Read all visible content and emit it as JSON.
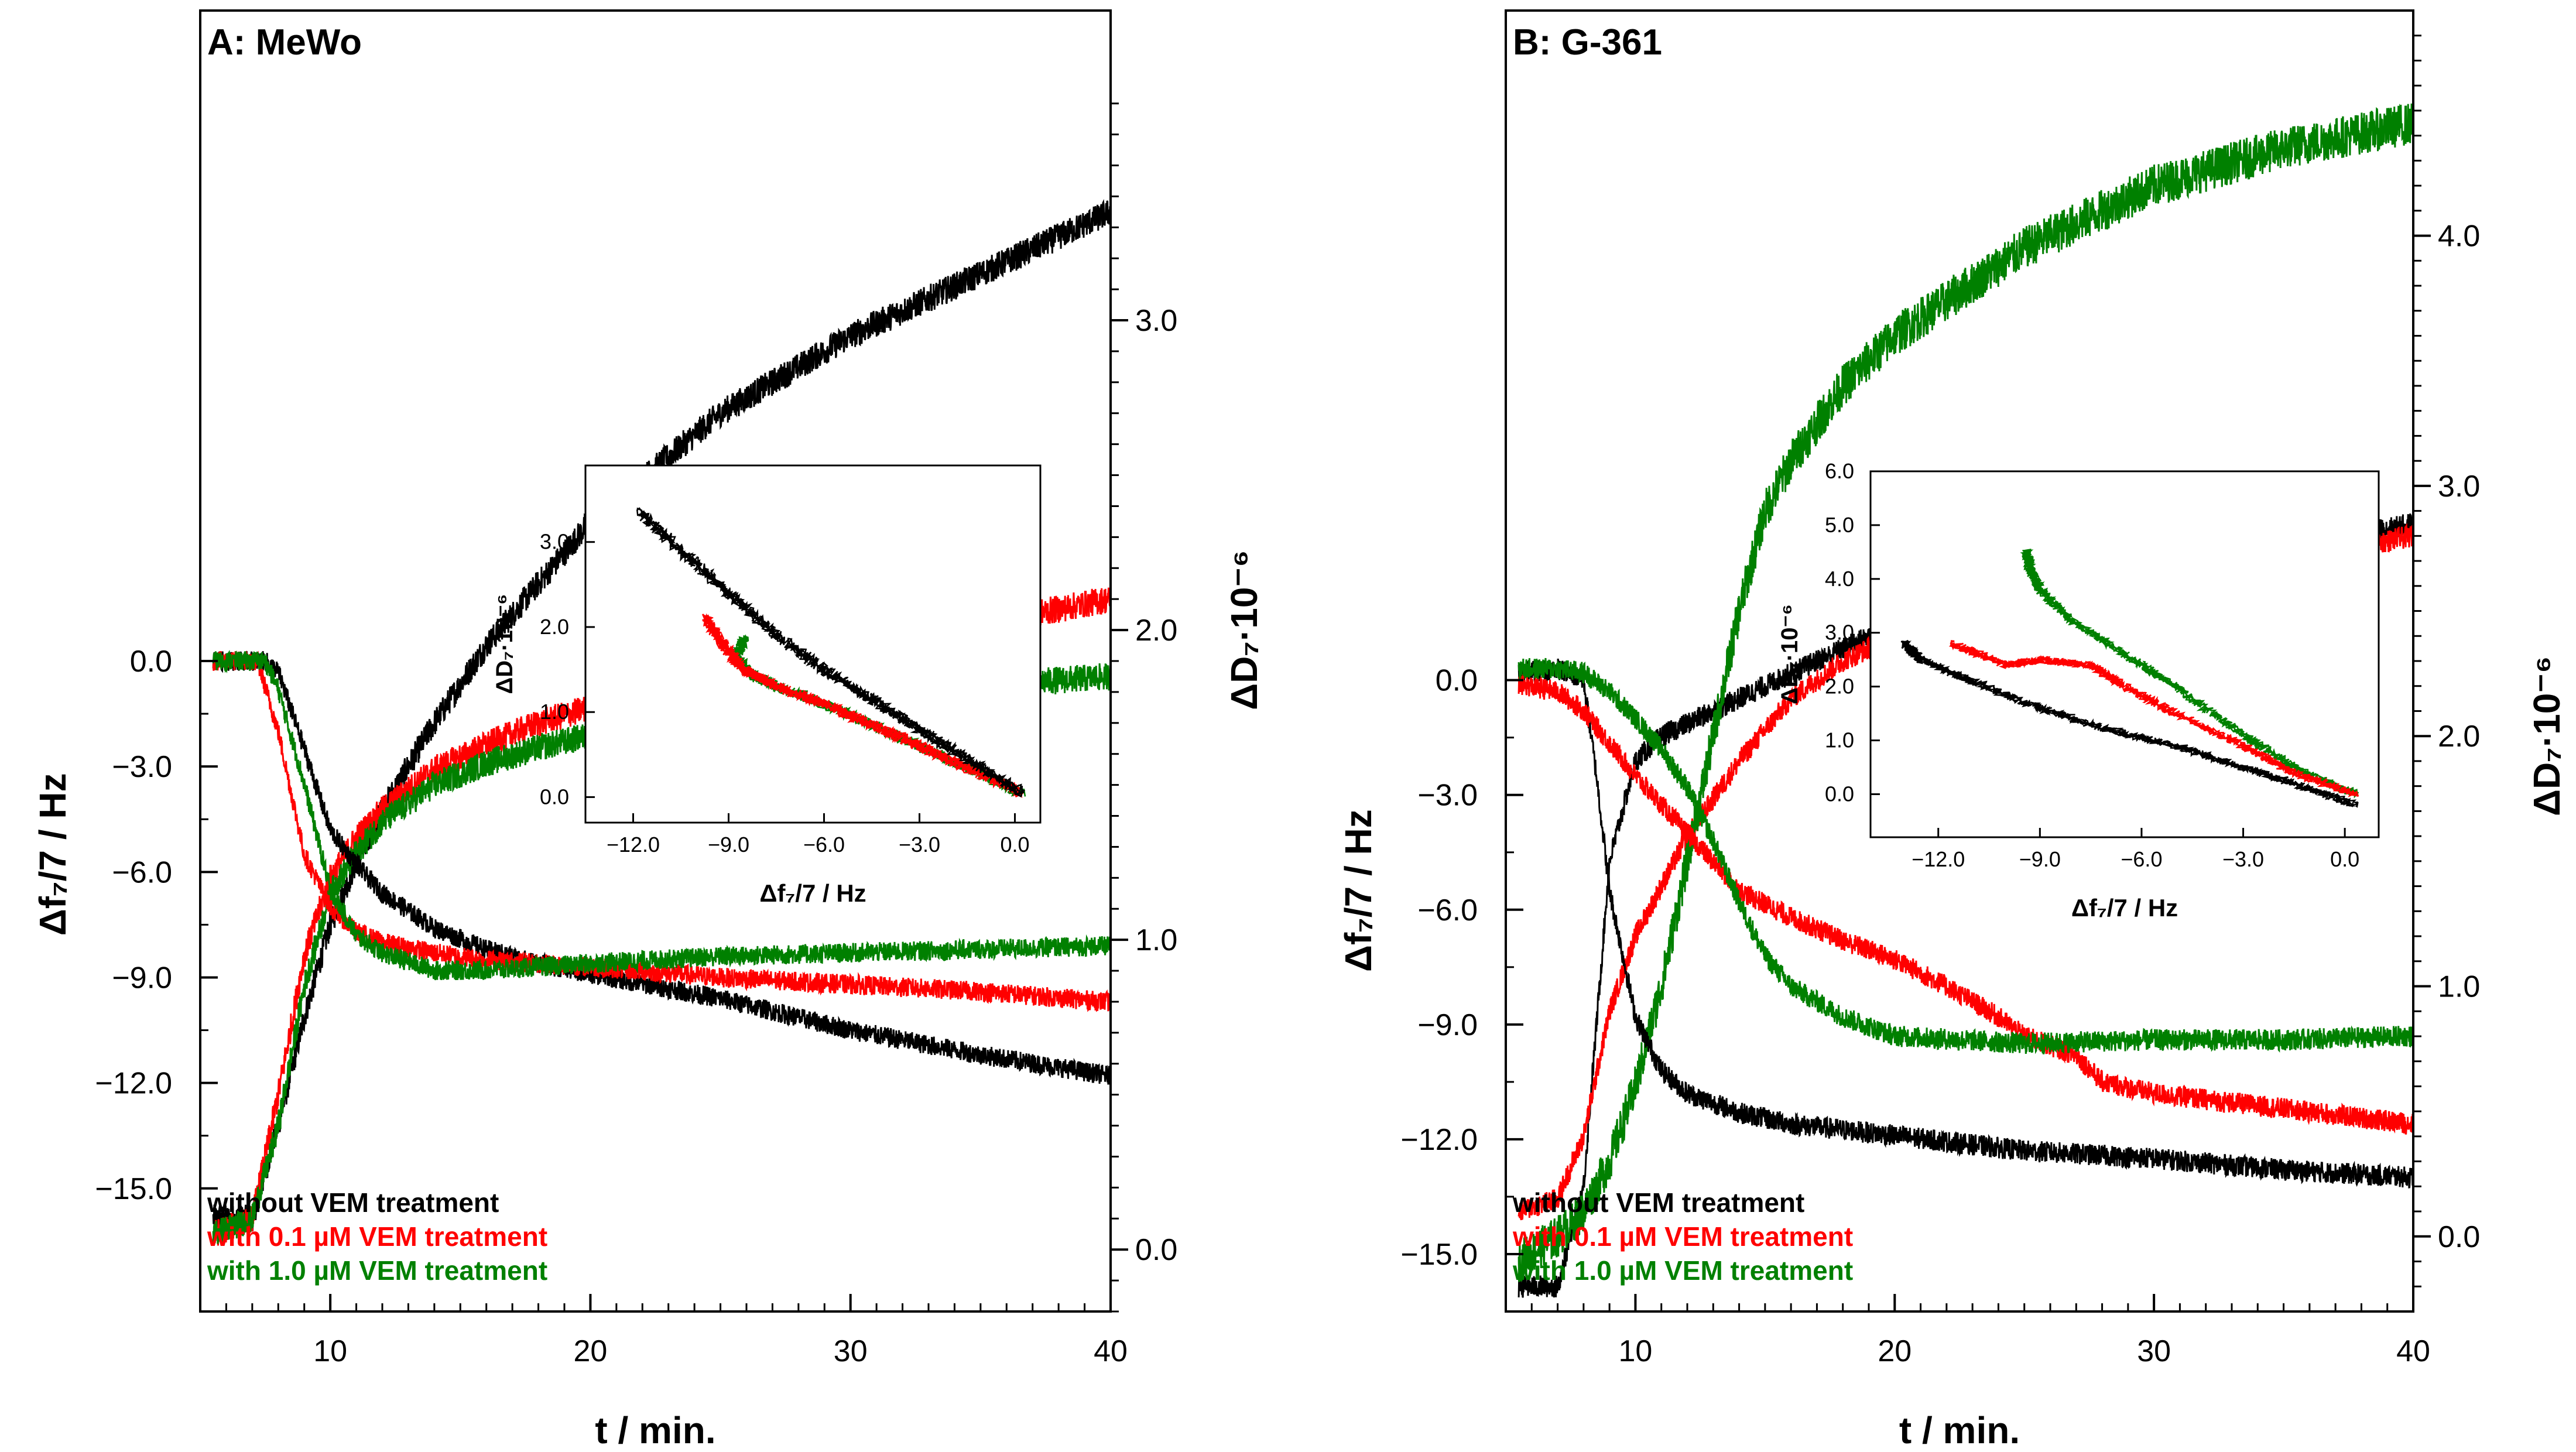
{
  "figure": {
    "legend_position": "bottom-left"
  },
  "legend": [
    {
      "label": "without VEM treatment",
      "color": "#000000"
    },
    {
      "label": "with 0.1 µM VEM treatment",
      "color": "#ff0000"
    },
    {
      "label": "with 1.0 µM VEM treatment",
      "color": "#008000"
    }
  ],
  "chart_data": [
    {
      "type": "line",
      "panel": "A",
      "title": "A: MeWo",
      "xlabel": "t / min.",
      "ylabel_left": "Δf₇/7 / Hz",
      "ylabel_right": "ΔD₇·10⁻⁶",
      "xlim": [
        5,
        40
      ],
      "xticks": [
        "10",
        "20",
        "30",
        "40"
      ],
      "ylim_left": [
        -18.5,
        18.5
      ],
      "yticks_left": [
        "0.0",
        "−3.0",
        "−6.0",
        "−9.0",
        "−12.0",
        "−15.0"
      ],
      "ylim_right": [
        -0.2,
        4.0
      ],
      "yticks_right": [
        "0.0",
        "1.0",
        "2.0",
        "3.0"
      ],
      "series_freq": [
        {
          "name": "without VEM treatment",
          "color": "#000000",
          "x": [
            5.5,
            7.5,
            8,
            9,
            10,
            11,
            12,
            14,
            16,
            18,
            20,
            25,
            30,
            35,
            40
          ],
          "y": [
            0.0,
            0.0,
            -0.3,
            -2.5,
            -4.8,
            -5.8,
            -6.6,
            -7.6,
            -8.2,
            -8.6,
            -8.9,
            -9.6,
            -10.5,
            -11.2,
            -11.8
          ]
        },
        {
          "name": "with 0.1 µM VEM treatment",
          "color": "#ff0000",
          "x": [
            5.5,
            7.2,
            8,
            9,
            10,
            11,
            12,
            14,
            16,
            18,
            20,
            25,
            30,
            35,
            40
          ],
          "y": [
            0.0,
            0.0,
            -2.0,
            -5.5,
            -7.0,
            -7.7,
            -8.0,
            -8.3,
            -8.5,
            -8.6,
            -8.7,
            -9.0,
            -9.2,
            -9.4,
            -9.7
          ]
        },
        {
          "name": "with 1.0 µM VEM treatment",
          "color": "#008000",
          "x": [
            5.5,
            7.5,
            8,
            9,
            10,
            11,
            12,
            14,
            16,
            18,
            20,
            25,
            30,
            35,
            40
          ],
          "y": [
            0.0,
            0.0,
            -0.8,
            -3.5,
            -6.5,
            -7.8,
            -8.3,
            -8.8,
            -8.8,
            -8.7,
            -8.6,
            -8.4,
            -8.3,
            -8.2,
            -8.1
          ]
        }
      ],
      "series_diss": [
        {
          "name": "without VEM treatment",
          "color": "#000000",
          "x": [
            5.5,
            7,
            8,
            9,
            10,
            11,
            12,
            14,
            16,
            18,
            20,
            25,
            30,
            35,
            40
          ],
          "y": [
            0.1,
            0.1,
            0.4,
            0.75,
            1.05,
            1.25,
            1.42,
            1.7,
            1.95,
            2.15,
            2.35,
            2.7,
            2.95,
            3.15,
            3.35
          ]
        },
        {
          "name": "with 0.1 µM VEM treatment",
          "color": "#ff0000",
          "x": [
            5.5,
            7,
            8,
            9,
            10,
            11,
            12,
            14,
            16,
            18,
            20,
            25,
            30,
            35,
            40
          ],
          "y": [
            0.05,
            0.1,
            0.5,
            0.95,
            1.2,
            1.33,
            1.42,
            1.55,
            1.63,
            1.7,
            1.75,
            1.85,
            1.95,
            2.02,
            2.1
          ]
        },
        {
          "name": "with 1.0 µM VEM treatment",
          "color": "#008000",
          "x": [
            5.5,
            7,
            8,
            9,
            10,
            11,
            12,
            14,
            16,
            18,
            20,
            25,
            30,
            35,
            40
          ],
          "y": [
            0.05,
            0.1,
            0.4,
            0.85,
            1.15,
            1.28,
            1.38,
            1.5,
            1.57,
            1.62,
            1.66,
            1.72,
            1.78,
            1.82,
            1.85
          ]
        }
      ],
      "inset": {
        "xlabel": "Δf₇/7 / Hz",
        "ylabel": "ΔD₇·10⁻⁶",
        "xlim": [
          -13.5,
          0.8
        ],
        "xticks": [
          "−12.0",
          "−9.0",
          "−6.0",
          "−3.0",
          "0.0"
        ],
        "ylim": [
          -0.3,
          3.9
        ],
        "yticks": [
          "0.0",
          "1.0",
          "2.0",
          "3.0"
        ],
        "series": [
          {
            "name": "without VEM treatment",
            "color": "#000000",
            "x": [
              0.2,
              -1.5,
              -3,
              -4.5,
              -6,
              -7.5,
              -9,
              -10.5,
              -11.8
            ],
            "y": [
              0.05,
              0.45,
              0.8,
              1.15,
              1.5,
              1.9,
              2.4,
              2.9,
              3.35
            ]
          },
          {
            "name": "with 0.1 µM VEM treatment",
            "color": "#ff0000",
            "x": [
              0.2,
              -1.5,
              -3,
              -4.5,
              -6,
              -7.5,
              -8.5,
              -9.2,
              -9.7
            ],
            "y": [
              0.05,
              0.35,
              0.6,
              0.85,
              1.1,
              1.3,
              1.5,
              1.8,
              2.1
            ]
          },
          {
            "name": "with 1.0 µM VEM treatment",
            "color": "#008000",
            "x": [
              0.2,
              -1.5,
              -3,
              -4.5,
              -6,
              -7.5,
              -8.3,
              -8.8,
              -8.5
            ],
            "y": [
              0.05,
              0.35,
              0.6,
              0.85,
              1.1,
              1.3,
              1.45,
              1.65,
              1.85
            ]
          }
        ]
      }
    },
    {
      "type": "line",
      "panel": "B",
      "title": "B: G-361",
      "xlabel": "t / min.",
      "ylabel_left": "Δf₇/7 / Hz",
      "ylabel_right": "ΔD₇·10⁻⁶",
      "xlim": [
        5,
        40
      ],
      "xticks": [
        "10",
        "20",
        "30",
        "40"
      ],
      "ylim_left": [
        -16.5,
        17.5
      ],
      "yticks_left": [
        "0.0",
        "−3.0",
        "−6.0",
        "−9.0",
        "−12.0",
        "−15.0"
      ],
      "ylim_right": [
        -0.3,
        4.9
      ],
      "yticks_right": [
        "0.0",
        "1.0",
        "2.0",
        "3.0",
        "4.0"
      ],
      "series_freq": [
        {
          "name": "without VEM treatment",
          "color": "#000000",
          "x": [
            5.5,
            7,
            8,
            8.5,
            9,
            10,
            11,
            12,
            14,
            16,
            20,
            25,
            30,
            35,
            40
          ],
          "y": [
            0.2,
            0.3,
            0.0,
            -2.5,
            -5.5,
            -8.8,
            -10.2,
            -10.8,
            -11.3,
            -11.6,
            -11.9,
            -12.3,
            -12.5,
            -12.8,
            -13.0
          ]
        },
        {
          "name": "with 0.1 µM VEM treatment",
          "color": "#ff0000",
          "x": [
            5.5,
            7,
            8,
            10,
            12,
            14,
            16,
            18,
            20,
            22,
            24,
            25,
            27,
            28,
            30,
            35,
            40
          ],
          "y": [
            -0.1,
            -0.3,
            -0.8,
            -2.5,
            -4.0,
            -5.5,
            -6.2,
            -6.8,
            -7.3,
            -8.0,
            -8.8,
            -9.3,
            -9.8,
            -10.5,
            -10.8,
            -11.2,
            -11.6
          ]
        },
        {
          "name": "with 1.0 µM VEM treatment",
          "color": "#008000",
          "x": [
            5.5,
            7,
            8,
            9,
            10,
            11,
            12,
            13,
            14,
            15,
            16,
            18,
            20,
            25,
            30,
            35,
            40
          ],
          "y": [
            0.3,
            0.3,
            0.2,
            -0.3,
            -1.0,
            -1.8,
            -2.8,
            -4.2,
            -5.8,
            -7.2,
            -8.0,
            -8.8,
            -9.3,
            -9.5,
            -9.4,
            -9.4,
            -9.3
          ]
        }
      ],
      "series_diss": [
        {
          "name": "without VEM treatment",
          "color": "#000000",
          "x": [
            5.5,
            7,
            8,
            9,
            10,
            11,
            12,
            14,
            16,
            18,
            20,
            25,
            30,
            35,
            40
          ],
          "y": [
            -0.2,
            -0.2,
            0.2,
            1.5,
            1.9,
            2.0,
            2.05,
            2.15,
            2.25,
            2.35,
            2.45,
            2.55,
            2.65,
            2.75,
            2.85
          ]
        },
        {
          "name": "with 0.1 µM VEM treatment",
          "color": "#ff0000",
          "x": [
            5.5,
            7,
            8,
            9,
            10,
            11,
            12,
            14,
            16,
            18,
            20,
            25,
            30,
            35,
            40
          ],
          "y": [
            0.1,
            0.15,
            0.4,
            0.9,
            1.2,
            1.4,
            1.6,
            1.9,
            2.15,
            2.3,
            2.4,
            2.5,
            2.6,
            2.7,
            2.8
          ]
        },
        {
          "name": "with 1.0 µM VEM treatment",
          "color": "#008000",
          "x": [
            5.5,
            7,
            8,
            9,
            10,
            11,
            12,
            13,
            14,
            15,
            16,
            18,
            20,
            25,
            30,
            35,
            40
          ],
          "y": [
            -0.1,
            0.0,
            0.1,
            0.3,
            0.6,
            1.0,
            1.5,
            2.0,
            2.5,
            2.9,
            3.1,
            3.4,
            3.6,
            3.95,
            4.2,
            4.35,
            4.45
          ]
        }
      ],
      "inset": {
        "xlabel": "Δf₇/7 / Hz",
        "ylabel": "ΔD₇·10⁻⁶",
        "xlim": [
          -14.0,
          1.0
        ],
        "xticks": [
          "−12.0",
          "−9.0",
          "−6.0",
          "−3.0",
          "0.0"
        ],
        "ylim": [
          -0.8,
          6.0
        ],
        "yticks": [
          "0.0",
          "1.0",
          "2.0",
          "3.0",
          "4.0",
          "5.0",
          "6.0"
        ],
        "series": [
          {
            "name": "without VEM treatment",
            "color": "#000000",
            "x": [
              0.3,
              -1.5,
              -3,
              -5,
              -7,
              -9,
              -11,
              -12.5,
              -13.0
            ],
            "y": [
              -0.2,
              0.2,
              0.5,
              0.9,
              1.2,
              1.6,
              2.1,
              2.5,
              2.8
            ]
          },
          {
            "name": "with 0.1 µM VEM treatment",
            "color": "#ff0000",
            "x": [
              0.3,
              -1.5,
              -3,
              -5,
              -6.5,
              -7.5,
              -9,
              -10,
              -11.6
            ],
            "y": [
              0.0,
              0.4,
              0.9,
              1.5,
              2.0,
              2.4,
              2.5,
              2.4,
              2.8
            ]
          },
          {
            "name": "with 1.0 µM VEM treatment",
            "color": "#008000",
            "x": [
              0.3,
              -1.5,
              -3,
              -5,
              -6.5,
              -8,
              -9,
              -9.3,
              -9.4
            ],
            "y": [
              0.0,
              0.5,
              1.1,
              2.0,
              2.6,
              3.2,
              3.8,
              4.2,
              4.5
            ]
          }
        ]
      }
    }
  ]
}
